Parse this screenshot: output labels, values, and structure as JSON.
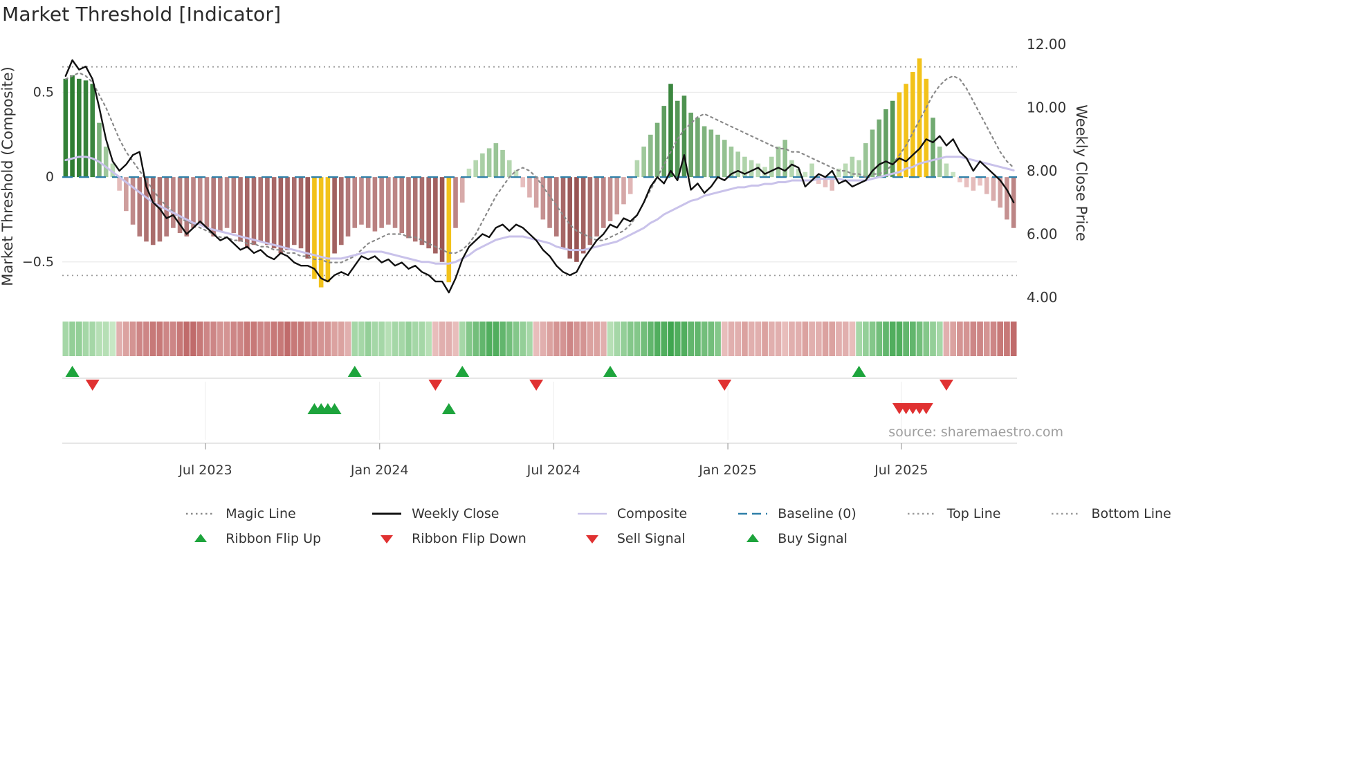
{
  "title": "Market Threshold [Indicator]",
  "source_credit": "source: sharemaestro.com",
  "legend": {
    "items": [
      {
        "label": "Magic Line",
        "type": "dotted-line",
        "color": "#8a8a8a"
      },
      {
        "label": "Weekly Close",
        "type": "solid-line",
        "color": "#111111"
      },
      {
        "label": "Composite",
        "type": "solid-line",
        "color": "#c9c2ea"
      },
      {
        "label": "Baseline (0)",
        "type": "dashed-line",
        "color": "#2e7fa8"
      },
      {
        "label": "Top Line",
        "type": "dotted-line",
        "color": "#9a9a9a"
      },
      {
        "label": "Bottom Line",
        "type": "dotted-line",
        "color": "#9a9a9a"
      },
      {
        "label": "Ribbon Flip Up",
        "type": "triangle-up",
        "color": "#1da43c"
      },
      {
        "label": "Ribbon Flip Down",
        "type": "triangle-down",
        "color": "#e03131"
      },
      {
        "label": "Sell Signal",
        "type": "triangle-down",
        "color": "#e03131"
      },
      {
        "label": "Buy Signal",
        "type": "triangle-up",
        "color": "#1da43c"
      }
    ]
  },
  "chart_data": {
    "type": "combo: threshold histogram bars (left axis) + price lines (right axis) + ribbon heatmap strip + signal markers",
    "x_unit": "weekly bars, approx Feb 2023 - Nov 2025",
    "x_ticks": [
      {
        "label": "Jul 2023",
        "week": 21.3
      },
      {
        "label": "Jan 2024",
        "week": 47.2
      },
      {
        "label": "Jul 2024",
        "week": 73.1
      },
      {
        "label": "Jan 2025",
        "week": 99.0
      },
      {
        "label": "Jul 2025",
        "week": 124.8
      }
    ],
    "left_axis": {
      "label": "Market Threshold (Composite)",
      "tick_labels": [
        "0.5",
        "0",
        "−0.5"
      ],
      "tick_values": [
        0.5,
        0,
        -0.5
      ],
      "range": [
        -0.77,
        0.82
      ]
    },
    "right_axis": {
      "label": "Weekly Close Price",
      "tick_labels": [
        "12.00",
        "10.00",
        "8.00",
        "6.00",
        "4.00"
      ],
      "tick_values": [
        12,
        10,
        8,
        6,
        4
      ],
      "range": [
        3.67,
        12.2
      ]
    },
    "baseline": 0,
    "top_line": 0.65,
    "bottom_line": -0.58,
    "threshold_bars": [
      0.58,
      0.6,
      0.58,
      0.57,
      0.55,
      0.32,
      0.18,
      0.08,
      -0.08,
      -0.2,
      -0.28,
      -0.35,
      -0.38,
      -0.4,
      -0.38,
      -0.35,
      -0.3,
      -0.33,
      -0.35,
      -0.3,
      -0.28,
      -0.3,
      -0.35,
      -0.32,
      -0.3,
      -0.33,
      -0.38,
      -0.42,
      -0.4,
      -0.38,
      -0.4,
      -0.42,
      -0.45,
      -0.43,
      -0.4,
      -0.42,
      -0.48,
      -0.6,
      -0.65,
      -0.62,
      -0.45,
      -0.4,
      -0.35,
      -0.3,
      -0.28,
      -0.3,
      -0.32,
      -0.3,
      -0.28,
      -0.3,
      -0.33,
      -0.36,
      -0.38,
      -0.4,
      -0.42,
      -0.45,
      -0.5,
      -0.62,
      -0.3,
      -0.15,
      0.05,
      0.1,
      0.14,
      0.17,
      0.2,
      0.16,
      0.1,
      0.04,
      -0.06,
      -0.12,
      -0.18,
      -0.25,
      -0.3,
      -0.35,
      -0.42,
      -0.48,
      -0.5,
      -0.45,
      -0.4,
      -0.35,
      -0.3,
      -0.26,
      -0.22,
      -0.16,
      -0.1,
      0.1,
      0.18,
      0.25,
      0.32,
      0.42,
      0.55,
      0.45,
      0.48,
      0.38,
      0.35,
      0.3,
      0.28,
      0.25,
      0.22,
      0.18,
      0.15,
      0.12,
      0.1,
      0.08,
      0.06,
      0.12,
      0.18,
      0.22,
      0.1,
      0.05,
      0.03,
      0.08,
      -0.04,
      -0.06,
      -0.08,
      0.05,
      0.08,
      0.12,
      0.1,
      0.2,
      0.28,
      0.34,
      0.4,
      0.45,
      0.5,
      0.55,
      0.62,
      0.7,
      0.58,
      0.35,
      0.18,
      0.08,
      0.03,
      -0.03,
      -0.06,
      -0.08,
      -0.05,
      -0.1,
      -0.14,
      -0.18,
      -0.25,
      -0.3
    ],
    "extreme_bar_indices": [
      37,
      38,
      39,
      57,
      124,
      125,
      126,
      127,
      128
    ],
    "weekly_close": [
      11.0,
      11.5,
      11.2,
      11.3,
      10.9,
      10.0,
      9.0,
      8.3,
      8.0,
      8.2,
      8.5,
      8.6,
      7.5,
      7.0,
      6.8,
      6.5,
      6.6,
      6.3,
      6.0,
      6.2,
      6.4,
      6.2,
      6.0,
      5.8,
      5.9,
      5.7,
      5.5,
      5.6,
      5.4,
      5.5,
      5.3,
      5.2,
      5.4,
      5.3,
      5.1,
      5.0,
      5.0,
      4.9,
      4.6,
      4.5,
      4.7,
      4.8,
      4.7,
      5.0,
      5.3,
      5.2,
      5.3,
      5.1,
      5.2,
      5.0,
      5.1,
      4.9,
      5.0,
      4.8,
      4.7,
      4.5,
      4.5,
      4.15,
      4.6,
      5.2,
      5.6,
      5.8,
      6.0,
      5.9,
      6.2,
      6.3,
      6.1,
      6.3,
      6.2,
      6.0,
      5.8,
      5.5,
      5.3,
      5.0,
      4.8,
      4.7,
      4.8,
      5.2,
      5.5,
      5.8,
      6.0,
      6.3,
      6.2,
      6.5,
      6.4,
      6.6,
      7.0,
      7.5,
      7.8,
      7.6,
      8.0,
      7.7,
      8.5,
      7.4,
      7.6,
      7.3,
      7.5,
      7.8,
      7.7,
      7.9,
      8.0,
      7.9,
      8.0,
      8.1,
      7.9,
      8.0,
      8.1,
      8.0,
      8.2,
      8.1,
      7.5,
      7.7,
      7.9,
      7.8,
      8.0,
      7.6,
      7.7,
      7.5,
      7.6,
      7.7,
      8.0,
      8.2,
      8.3,
      8.2,
      8.4,
      8.3,
      8.5,
      8.7,
      9.0,
      8.9,
      9.1,
      8.8,
      9.0,
      8.6,
      8.4,
      8.0,
      8.3,
      8.1,
      7.9,
      7.7,
      7.4,
      7.0
    ],
    "magic_line": [
      10.9,
      11.0,
      11.1,
      11.0,
      10.8,
      10.4,
      10.0,
      9.5,
      9.0,
      8.6,
      8.3,
      8.0,
      7.7,
      7.4,
      7.1,
      6.9,
      6.7,
      6.5,
      6.4,
      6.3,
      6.2,
      6.1,
      6.0,
      5.9,
      5.9,
      5.8,
      5.8,
      5.7,
      5.7,
      5.6,
      5.6,
      5.5,
      5.5,
      5.4,
      5.4,
      5.3,
      5.3,
      5.2,
      5.2,
      5.1,
      5.1,
      5.1,
      5.2,
      5.3,
      5.5,
      5.7,
      5.8,
      5.9,
      6.0,
      6.0,
      6.0,
      5.9,
      5.9,
      5.8,
      5.7,
      5.6,
      5.5,
      5.4,
      5.4,
      5.5,
      5.7,
      6.0,
      6.4,
      6.8,
      7.2,
      7.5,
      7.8,
      8.0,
      8.1,
      8.0,
      7.8,
      7.5,
      7.2,
      6.9,
      6.6,
      6.3,
      6.1,
      6.0,
      5.9,
      5.8,
      5.8,
      5.9,
      6.0,
      6.1,
      6.3,
      6.6,
      7.0,
      7.4,
      7.8,
      8.2,
      8.6,
      9.0,
      9.3,
      9.5,
      9.7,
      9.8,
      9.7,
      9.6,
      9.5,
      9.4,
      9.3,
      9.2,
      9.1,
      9.0,
      8.9,
      8.8,
      8.7,
      8.7,
      8.6,
      8.6,
      8.5,
      8.4,
      8.3,
      8.2,
      8.1,
      8.0,
      8.0,
      7.9,
      7.9,
      7.8,
      7.9,
      7.9,
      8.0,
      8.2,
      8.5,
      8.8,
      9.2,
      9.6,
      10.0,
      10.4,
      10.7,
      10.9,
      11.0,
      10.9,
      10.6,
      10.2,
      9.8,
      9.4,
      9.0,
      8.6,
      8.3,
      8.1
    ],
    "composite": [
      0.1,
      0.11,
      0.12,
      0.12,
      0.11,
      0.09,
      0.06,
      0.03,
      0.0,
      -0.03,
      -0.06,
      -0.09,
      -0.12,
      -0.15,
      -0.17,
      -0.19,
      -0.21,
      -0.23,
      -0.25,
      -0.27,
      -0.28,
      -0.3,
      -0.31,
      -0.32,
      -0.33,
      -0.34,
      -0.35,
      -0.36,
      -0.37,
      -0.38,
      -0.39,
      -0.4,
      -0.41,
      -0.42,
      -0.43,
      -0.44,
      -0.45,
      -0.46,
      -0.47,
      -0.48,
      -0.48,
      -0.48,
      -0.47,
      -0.46,
      -0.45,
      -0.44,
      -0.44,
      -0.44,
      -0.45,
      -0.46,
      -0.47,
      -0.48,
      -0.49,
      -0.5,
      -0.5,
      -0.51,
      -0.51,
      -0.51,
      -0.5,
      -0.48,
      -0.46,
      -0.43,
      -0.41,
      -0.39,
      -0.37,
      -0.36,
      -0.35,
      -0.35,
      -0.35,
      -0.36,
      -0.37,
      -0.38,
      -0.39,
      -0.41,
      -0.42,
      -0.43,
      -0.43,
      -0.43,
      -0.42,
      -0.41,
      -0.4,
      -0.39,
      -0.38,
      -0.36,
      -0.34,
      -0.32,
      -0.3,
      -0.27,
      -0.25,
      -0.22,
      -0.2,
      -0.18,
      -0.16,
      -0.14,
      -0.13,
      -0.11,
      -0.1,
      -0.09,
      -0.08,
      -0.07,
      -0.06,
      -0.06,
      -0.05,
      -0.05,
      -0.04,
      -0.04,
      -0.03,
      -0.03,
      -0.02,
      -0.02,
      -0.02,
      -0.02,
      -0.01,
      -0.01,
      -0.01,
      -0.01,
      -0.02,
      -0.02,
      -0.02,
      -0.02,
      -0.01,
      0.0,
      0.01,
      0.02,
      0.03,
      0.05,
      0.06,
      0.08,
      0.09,
      0.1,
      0.11,
      0.12,
      0.12,
      0.12,
      0.11,
      0.1,
      0.09,
      0.08,
      0.07,
      0.06,
      0.05,
      0.04
    ],
    "ribbon": [
      0.3,
      0.4,
      0.4,
      0.3,
      0.3,
      0.2,
      0.2,
      0.1,
      -0.3,
      -0.4,
      -0.5,
      -0.6,
      -0.6,
      -0.7,
      -0.7,
      -0.6,
      -0.6,
      -0.7,
      -0.8,
      -0.8,
      -0.7,
      -0.6,
      -0.6,
      -0.5,
      -0.5,
      -0.6,
      -0.6,
      -0.7,
      -0.7,
      -0.6,
      -0.6,
      -0.7,
      -0.7,
      -0.8,
      -0.7,
      -0.7,
      -0.6,
      -0.6,
      -0.5,
      -0.5,
      -0.4,
      -0.4,
      -0.3,
      0.3,
      0.3,
      0.4,
      0.3,
      0.3,
      0.2,
      0.3,
      0.3,
      0.4,
      0.3,
      0.3,
      0.2,
      -0.2,
      -0.3,
      -0.3,
      -0.2,
      0.3,
      0.5,
      0.6,
      0.7,
      0.8,
      0.8,
      0.7,
      0.6,
      0.5,
      0.4,
      0.3,
      -0.2,
      -0.3,
      -0.4,
      -0.5,
      -0.5,
      -0.6,
      -0.5,
      -0.5,
      -0.4,
      -0.4,
      -0.3,
      0.2,
      0.3,
      0.4,
      0.5,
      0.5,
      0.6,
      0.7,
      0.8,
      0.8,
      0.9,
      0.8,
      0.8,
      0.7,
      0.7,
      0.6,
      0.6,
      0.5,
      -0.2,
      -0.3,
      -0.3,
      -0.4,
      -0.3,
      -0.3,
      -0.4,
      -0.3,
      -0.3,
      -0.2,
      -0.3,
      -0.3,
      -0.4,
      -0.3,
      -0.3,
      -0.4,
      -0.4,
      -0.3,
      -0.3,
      -0.2,
      0.3,
      0.4,
      0.5,
      0.6,
      0.7,
      0.8,
      0.8,
      0.7,
      0.7,
      0.6,
      0.5,
      0.4,
      0.3,
      -0.3,
      -0.4,
      -0.5,
      -0.5,
      -0.6,
      -0.6,
      -0.5,
      -0.6,
      -0.7,
      -0.7,
      -0.8
    ],
    "signals": {
      "ribbon_flip_up_weeks": [
        1,
        43,
        59,
        81,
        118
      ],
      "ribbon_flip_down_weeks": [
        4,
        55,
        70,
        98,
        131
      ],
      "buy_signal_weeks": [
        37,
        38,
        39,
        40,
        57
      ],
      "sell_signal_weeks": [
        124,
        125,
        126,
        127,
        128
      ]
    },
    "colors": {
      "pos_light": "#cfe8c8",
      "pos_dark": "#2e7d32",
      "neg_light": "#f2cece",
      "neg_dark": "#95504f",
      "extreme": "#f2c21a",
      "ribbon_pos_light": "#d8efd2",
      "ribbon_pos_dark": "#2f9e41",
      "ribbon_neg_light": "#f5d8d6",
      "ribbon_neg_dark": "#b35050",
      "weekly_close": "#111111",
      "magic": "#8a8a8a",
      "composite_line": "#c9c2ea",
      "baseline": "#2e7fa8",
      "guide": "#9a9a9a",
      "buy": "#1da43c",
      "sell": "#e03131",
      "grid": "#eaeaea",
      "axis_text": "#333333",
      "muted": "#9e9e9e"
    }
  }
}
